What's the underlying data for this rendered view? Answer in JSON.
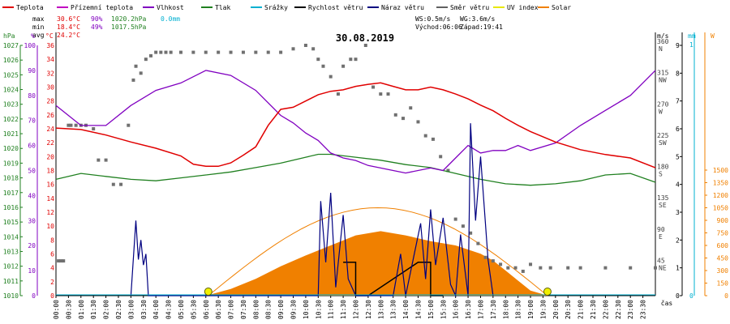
{
  "chart_data": {
    "type": "line",
    "title": "30.08.2019",
    "legend": [
      {
        "label": "Teplota",
        "color": "#e00000"
      },
      {
        "label": "Přízemní teplota",
        "color": "#c000c0"
      },
      {
        "label": "Vlhkost",
        "color": "#8000c0"
      },
      {
        "label": "Tlak",
        "color": "#208020"
      },
      {
        "label": "Srážky",
        "color": "#00b0d0"
      },
      {
        "label": "Rychlost větru",
        "color": "#000000"
      },
      {
        "label": "Náraz větru",
        "color": "#000080"
      },
      {
        "label": "Směr větru",
        "color": "#606060"
      },
      {
        "label": "UV index",
        "color": "#e8e800"
      },
      {
        "label": "Solar",
        "color": "#f08000"
      }
    ],
    "stats": {
      "max_label": "max",
      "max_temp": "30.6°C",
      "max_hum": "90%",
      "max_press": "1020.2hPa",
      "rain": "0.0mm",
      "min_label": "min",
      "min_temp": "18.4°C",
      "min_hum": "49%",
      "min_press": "1017.5hPa",
      "avg_label": "avg",
      "avg_temp": "24.2°C",
      "ws": "WS:0.5m/s",
      "wg": "WG:3.6m/s",
      "sunrise": "Východ:06:06",
      "sunset": "Západ:19:41"
    },
    "left_axes": {
      "pressure": {
        "unit": "hPa",
        "ticks": [
          1010,
          1011,
          1012,
          1013,
          1014,
          1015,
          1016,
          1017,
          1018,
          1019,
          1020,
          1021,
          1022,
          1023,
          1024,
          1025,
          1026,
          1027
        ]
      },
      "humidity": {
        "unit": "%",
        "ticks": [
          0,
          10,
          20,
          30,
          40,
          50,
          60,
          70,
          80,
          90,
          100
        ]
      },
      "temperature": {
        "unit": "°C",
        "ticks": [
          0,
          2,
          4,
          6,
          8,
          10,
          12,
          14,
          16,
          18,
          20,
          22,
          24,
          26,
          28,
          30,
          32,
          34,
          36
        ]
      }
    },
    "right_axes": {
      "direction": {
        "unit": "°",
        "ticks": [
          "45 NE",
          "90 E",
          "135 SE",
          "180 S",
          "225 SW",
          "270 W",
          "315 NW",
          "360 N"
        ]
      },
      "wind": {
        "unit": "m/s",
        "ticks": [
          0,
          1,
          2,
          3,
          4,
          5,
          6,
          7,
          8,
          9
        ]
      },
      "rain": {
        "unit": "mm",
        "ticks": [
          0,
          1
        ]
      },
      "solar": {
        "unit": "W",
        "ticks": [
          0,
          150,
          300,
          450,
          600,
          750,
          900,
          1050,
          1200,
          1350,
          1500
        ]
      }
    },
    "x_ticks": [
      "00:00",
      "00:30",
      "01:00",
      "01:30",
      "02:00",
      "02:30",
      "03:00",
      "03:30",
      "04:00",
      "04:30",
      "05:00",
      "05:30",
      "06:00",
      "06:30",
      "07:00",
      "07:30",
      "08:00",
      "08:30",
      "09:00",
      "09:30",
      "10:00",
      "10:30",
      "11:00",
      "11:30",
      "12:00",
      "12:30",
      "13:00",
      "13:30",
      "14:00",
      "14:30",
      "15:00",
      "15:30",
      "16:00",
      "16:30",
      "17:00",
      "17:30",
      "18:00",
      "18:30",
      "19:00",
      "19:30",
      "20:00",
      "20:30",
      "21:00",
      "21:30",
      "22:00",
      "22:30",
      "23:00",
      "23:30"
    ],
    "xlabel": "čas",
    "temperature": {
      "x": [
        0,
        1,
        2,
        3,
        4,
        5,
        5.5,
        6,
        6.5,
        7,
        7.5,
        8,
        8.5,
        9,
        9.5,
        10,
        10.5,
        11,
        11.5,
        12,
        12.5,
        13,
        13.5,
        14,
        14.5,
        15,
        15.5,
        16,
        16.5,
        17,
        17.5,
        18,
        18.5,
        19,
        20,
        21,
        22,
        23,
        24
      ],
      "y": [
        24.1,
        23.9,
        23.1,
        22.1,
        21.2,
        20.1,
        18.9,
        18.6,
        18.6,
        19.1,
        20.2,
        21.4,
        24.5,
        26.8,
        27.1,
        28.0,
        28.9,
        29.4,
        29.6,
        30.1,
        30.4,
        30.6,
        30.1,
        29.6,
        29.6,
        30.0,
        29.6,
        29.0,
        28.3,
        27.4,
        26.6,
        25.5,
        24.5,
        23.6,
        22.1,
        21.0,
        20.3,
        19.8,
        18.4
      ]
    },
    "humidity": {
      "x": [
        0,
        1,
        2,
        3,
        4,
        5,
        6,
        7,
        8,
        9,
        9.5,
        10,
        10.5,
        11,
        11.5,
        12,
        12.5,
        13,
        13.5,
        14,
        15,
        15.5,
        16,
        16.5,
        17,
        17.5,
        18,
        18.5,
        19,
        20,
        21,
        22,
        23,
        24
      ],
      "y": [
        76,
        68,
        68,
        76,
        82,
        85,
        90,
        88,
        82,
        72,
        69,
        65,
        62,
        57,
        55,
        54,
        52,
        51,
        50,
        49,
        51,
        50,
        55,
        60,
        57,
        58,
        58,
        60,
        58,
        61,
        68,
        74,
        80,
        90
      ]
    },
    "pressure": {
      "x": [
        0,
        1,
        2,
        3,
        4,
        5,
        6,
        7,
        8,
        9,
        9.5,
        10,
        10.5,
        11,
        12,
        13,
        14,
        15,
        16,
        17,
        18,
        19,
        20,
        21,
        22,
        23,
        24
      ],
      "y": [
        1017.9,
        1018.3,
        1018.1,
        1017.9,
        1017.8,
        1018.0,
        1018.2,
        1018.4,
        1018.7,
        1019.0,
        1019.2,
        1019.4,
        1019.6,
        1019.6,
        1019.4,
        1019.2,
        1018.9,
        1018.7,
        1018.3,
        1017.9,
        1017.6,
        1017.5,
        1017.6,
        1017.8,
        1018.2,
        1018.3,
        1017.7
      ]
    },
    "rain": {
      "total": 0.0
    },
    "solar": {
      "x": [
        6,
        7,
        8,
        9,
        10,
        11,
        12,
        13,
        14,
        15,
        16,
        17,
        17.5,
        18,
        18.5,
        19,
        19.7
      ],
      "y": [
        0,
        80,
        200,
        350,
        480,
        600,
        720,
        770,
        720,
        650,
        600,
        500,
        420,
        300,
        180,
        60,
        0
      ]
    },
    "uv_markers": [
      6.1,
      19.68
    ],
    "wind_speed": {
      "x": [
        11.5,
        12.0,
        12.0,
        12.5,
        14.5,
        15.0,
        15.0,
        15.5
      ],
      "y": [
        1.2,
        1.2,
        0,
        0,
        1.2,
        1.2,
        0,
        0
      ]
    },
    "wind_gust": {
      "x": [
        3.0,
        3.2,
        3.3,
        3.4,
        3.5,
        3.6,
        3.7,
        10.5,
        10.6,
        10.8,
        11.0,
        11.2,
        11.5,
        11.7,
        12.0,
        13.5,
        13.8,
        14.0,
        14.6,
        14.8,
        15.0,
        15.2,
        15.5,
        15.8,
        16.0,
        16.2,
        16.5,
        16.6,
        16.8,
        17.0,
        17.3,
        17.5
      ],
      "y": [
        0,
        2.7,
        1.3,
        2.0,
        1.1,
        1.5,
        0,
        0,
        3.4,
        1.2,
        3.7,
        0.3,
        2.9,
        0.6,
        0,
        0,
        1.5,
        0,
        2.6,
        0.6,
        3.1,
        1.1,
        2.8,
        0.4,
        0,
        2.2,
        0,
        6.2,
        2.7,
        5.0,
        1.3,
        0
      ]
    },
    "wind_direction": {
      "x": [
        0.1,
        0.2,
        0.3,
        0.5,
        0.6,
        0.8,
        1.0,
        1.2,
        1.5,
        1.7,
        2.0,
        2.3,
        2.6,
        2.9,
        3.1,
        3.2,
        3.4,
        3.6,
        3.8,
        4.0,
        4.2,
        4.4,
        4.6,
        5.0,
        5.5,
        6.0,
        6.5,
        7.0,
        7.5,
        8.0,
        8.5,
        9.0,
        9.5,
        10.0,
        10.3,
        10.5,
        10.7,
        11.0,
        11.3,
        11.5,
        11.8,
        12.0,
        12.4,
        12.7,
        13.0,
        13.3,
        13.6,
        13.9,
        14.2,
        14.5,
        14.8,
        15.1,
        15.4,
        15.7,
        16.0,
        16.3,
        16.6,
        16.9,
        17.2,
        17.5,
        17.8,
        18.1,
        18.4,
        18.7,
        19.0,
        19.4,
        19.8,
        20.5,
        21,
        22,
        23,
        24
      ],
      "y": [
        50,
        50,
        50,
        245,
        245,
        245,
        245,
        245,
        240,
        195,
        195,
        160,
        160,
        245,
        310,
        330,
        320,
        340,
        345,
        350,
        350,
        350,
        350,
        350,
        350,
        350,
        350,
        350,
        350,
        350,
        350,
        350,
        355,
        360,
        355,
        340,
        330,
        315,
        290,
        330,
        340,
        340,
        360,
        300,
        290,
        290,
        260,
        255,
        270,
        250,
        230,
        225,
        200,
        180,
        110,
        100,
        90,
        75,
        55,
        50,
        45,
        40,
        40,
        35,
        45,
        40,
        40,
        40,
        40,
        40,
        40,
        40
      ]
    }
  }
}
